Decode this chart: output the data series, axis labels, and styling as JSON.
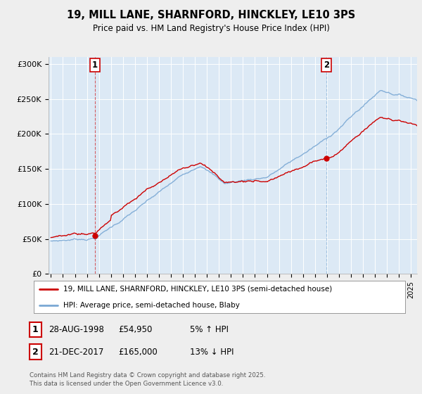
{
  "title_line1": "19, MILL LANE, SHARNFORD, HINCKLEY, LE10 3PS",
  "title_line2": "Price paid vs. HM Land Registry's House Price Index (HPI)",
  "legend_line1": "19, MILL LANE, SHARNFORD, HINCKLEY, LE10 3PS (semi-detached house)",
  "legend_line2": "HPI: Average price, semi-detached house, Blaby",
  "annotation1_date": "28-AUG-1998",
  "annotation1_price": "£54,950",
  "annotation1_hpi": "5% ↑ HPI",
  "annotation2_date": "21-DEC-2017",
  "annotation2_price": "£165,000",
  "annotation2_hpi": "13% ↓ HPI",
  "footer": "Contains HM Land Registry data © Crown copyright and database right 2025.\nThis data is licensed under the Open Government Licence v3.0.",
  "line_color_property": "#cc0000",
  "line_color_hpi": "#7aa8d4",
  "vline1_color": "#cc0000",
  "vline2_color": "#7aa8d4",
  "annotation_box_color": "#cc0000",
  "background_color": "#eeeeee",
  "plot_background": "#dce9f5",
  "ylabel_ticks": [
    "£0",
    "£50K",
    "£100K",
    "£150K",
    "£200K",
    "£250K",
    "£300K"
  ],
  "ytick_values": [
    0,
    50000,
    100000,
    150000,
    200000,
    250000,
    300000
  ],
  "ylim": [
    0,
    310000
  ],
  "xlim_start": 1994.8,
  "xlim_end": 2025.5,
  "sale1_year": 1998.65,
  "sale1_price": 54950,
  "sale2_year": 2017.97,
  "sale2_price": 165000
}
